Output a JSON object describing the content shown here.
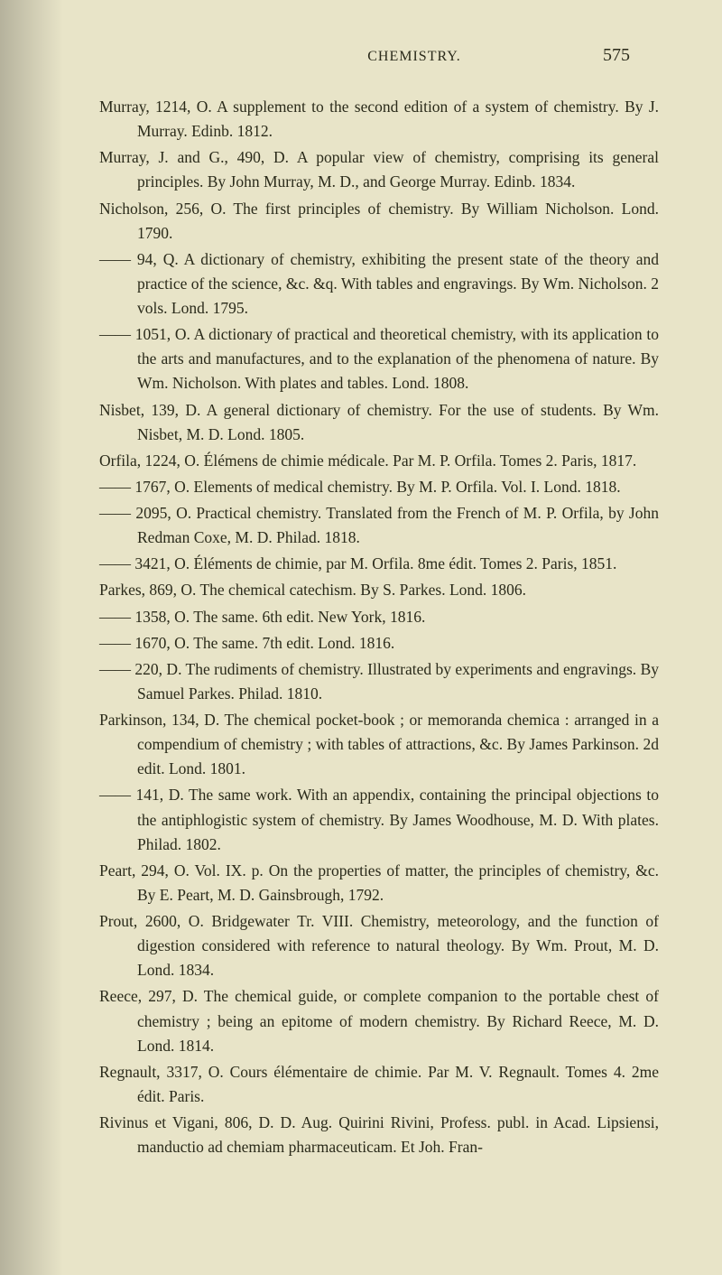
{
  "page": {
    "header_title": "CHEMISTRY.",
    "page_number": "575"
  },
  "entries": [
    "Murray, 1214, O.  A supplement to the second edition of a system of chemistry.  By J. Murray.  Edinb. 1812.",
    "Murray, J. and G., 490, D.  A popular view of chemistry, comprising its general principles.  By John Murray, M. D., and George Murray. Edinb. 1834.",
    "Nicholson, 256, O.  The first principles of chemistry.  By William Nicholson.  Lond. 1790.",
    "—— 94, Q.  A dictionary of chemistry, exhibiting the present state of the theory and practice of the science, &c. &q.  With tables and engravings.  By Wm. Nicholson.  2 vols.  Lond. 1795.",
    "—— 1051, O.  A dictionary of practical and theoretical chemistry, with its application to the arts and manufactures, and to the explanation of the phenomena of nature.  By Wm. Nicholson.  With plates and tables.  Lond. 1808.",
    "Nisbet, 139, D.  A general dictionary of chemistry.  For the use of students.  By Wm. Nisbet, M. D.  Lond. 1805.",
    "Orfila, 1224, O.  Élémens de chimie médicale.  Par M. P. Orfila.  Tomes 2. Paris, 1817.",
    "—— 1767, O.  Elements of medical chemistry.  By M. P. Orfila.  Vol. I. Lond. 1818.",
    "—— 2095, O.  Practical chemistry.  Translated from the French of M. P. Orfila, by John Redman Coxe, M. D.  Philad. 1818.",
    "—— 3421, O.  Éléments de chimie, par M. Orfila.  8me édit.  Tomes 2. Paris, 1851.",
    "Parkes, 869, O.  The chemical catechism.  By S. Parkes.  Lond. 1806.",
    "—— 1358, O.  The same.  6th edit.  New York, 1816.",
    "—— 1670, O.  The same.  7th edit.  Lond. 1816.",
    "—— 220, D.  The rudiments of chemistry.  Illustrated by experiments and engravings.  By Samuel Parkes.  Philad. 1810.",
    "Parkinson, 134, D.  The chemical pocket-book ; or memoranda chemica : arranged in a compendium of chemistry ; with tables of attractions, &c.  By James Parkinson.  2d edit.  Lond. 1801.",
    "—— 141, D.  The same work.  With an appendix, containing the principal objections to the antiphlogistic system of chemistry.  By James Woodhouse, M. D.  With plates.  Philad. 1802.",
    "Peart, 294, O. Vol. IX. p.  On the properties of matter, the principles of chemistry, &c.  By E. Peart, M. D.  Gainsbrough, 1792.",
    "Prout, 2600, O.  Bridgewater Tr. VIII.  Chemistry, meteorology, and the function of digestion considered with reference to natural theology. By Wm. Prout, M. D.  Lond. 1834.",
    "Reece, 297, D.  The chemical guide, or complete companion to the portable chest of chemistry ; being an epitome of modern chemistry.  By Richard Reece, M. D.  Lond. 1814.",
    "Regnault, 3317, O.  Cours élémentaire de chimie.  Par M. V. Regnault. Tomes 4.  2me édit.  Paris.",
    "Rivinus et Vigani, 806, D.  D. Aug. Quirini Rivini, Profess. publ. in Acad. Lipsiensi, manductio ad chemiam pharmaceuticam.  Et Joh. Fran-"
  ]
}
